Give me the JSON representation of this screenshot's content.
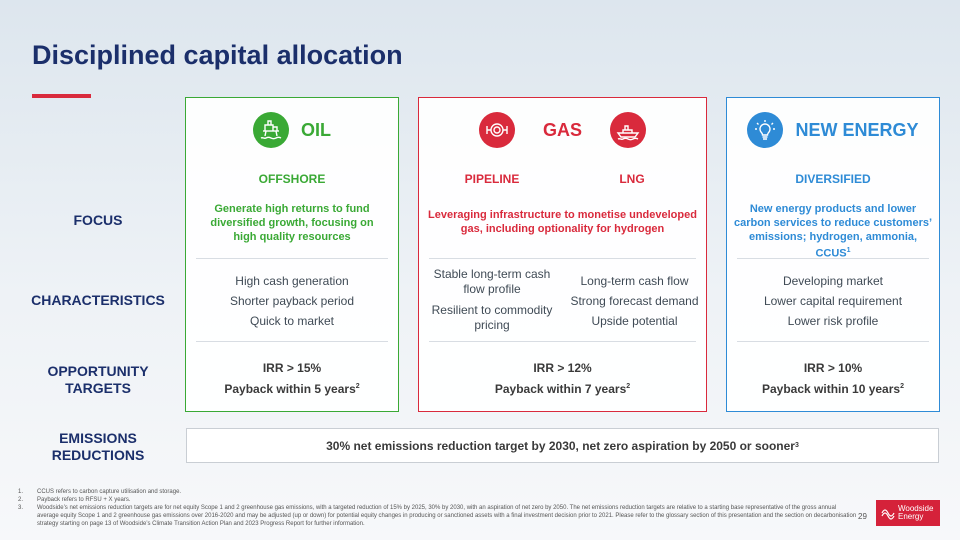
{
  "title": "Disciplined capital allocation",
  "row_labels": {
    "focus": "FOCUS",
    "characteristics": "CHARACTERISTICS",
    "opportunity_line1": "OPPORTUNITY",
    "opportunity_line2": "TARGETS",
    "emissions_line1": "EMISSIONS",
    "emissions_line2": "REDUCTIONS"
  },
  "colors": {
    "oil": "#3aa935",
    "gas": "#d92a3c",
    "new_energy": "#2e8bd6",
    "navy": "#1b2f6b",
    "brand_red": "#d5223a"
  },
  "panels": {
    "oil": {
      "title": "OIL",
      "icon": "oil-platform-icon",
      "sub": "OFFSHORE",
      "focus": [
        "Generate high returns to fund",
        "diversified growth, focusing on",
        "high quality resources"
      ],
      "characteristics": [
        "High cash generation",
        "Shorter payback period",
        "Quick to market"
      ],
      "target_irr": "IRR > 15%",
      "target_payback": "Payback within 5 years",
      "target_note": "2"
    },
    "gas": {
      "title": "GAS",
      "icon_left": "pipeline-icon",
      "icon_right": "lng-ship-icon",
      "sub_left": "PIPELINE",
      "sub_right": "LNG",
      "focus": [
        "Leveraging infrastructure to monetise undeveloped",
        "gas, including optionality for hydrogen"
      ],
      "pipeline_char1": [
        "Stable long-term cash",
        "flow profile"
      ],
      "pipeline_char2": [
        "Resilient to commodity",
        "pricing"
      ],
      "lng_chars": [
        "Long-term cash flow",
        "Strong forecast demand",
        "Upside potential"
      ],
      "target_irr": "IRR > 12%",
      "target_payback": "Payback within 7 years",
      "target_note": "2"
    },
    "new_energy": {
      "title": "NEW ENERGY",
      "icon": "lightbulb-icon",
      "sub": "DIVERSIFIED",
      "focus1": "New energy products and lower",
      "focus2": "carbon services to reduce customers’",
      "focus3": "emissions; hydrogen, ammonia, CCUS",
      "focus_note": "1",
      "characteristics": [
        "Developing market",
        "Lower capital requirement",
        "Lower risk profile"
      ],
      "target_irr": "IRR > 10%",
      "target_payback": "Payback within 10 years",
      "target_note": "2"
    }
  },
  "emissions": {
    "text": "30% net emissions reduction target by 2030, net zero aspiration by 2050 or sooner",
    "note": "3"
  },
  "footnotes": [
    {
      "num": "1.",
      "text": "CCUS refers to carbon capture utilisation and storage."
    },
    {
      "num": "2.",
      "text": "Payback refers to RFSU + X years."
    },
    {
      "num": "3.",
      "text": "Woodside’s net emissions reduction targets are for net equity Scope 1 and 2 greenhouse gas emissions, with a targeted reduction of 15% by 2025, 30% by 2030, with an aspiration of net zero by 2050. The net emissions reduction targets are relative to a starting base representative of the gross annual average equity Scope 1 and 2 greenhouse gas emissions over 2016-2020 and may be adjusted (up or down) for potential equity changes in producing or sanctioned assets with a final investment decision prior to 2021. Please refer to the glossary section of this presentation and the section on decarbonisation strategy starting on page 13 of Woodside’s Climate Transition Action Plan and 2023 Progress Report for further information."
    }
  ],
  "page_number": "29",
  "logo": {
    "line1": "Woodside",
    "line2": "Energy"
  }
}
